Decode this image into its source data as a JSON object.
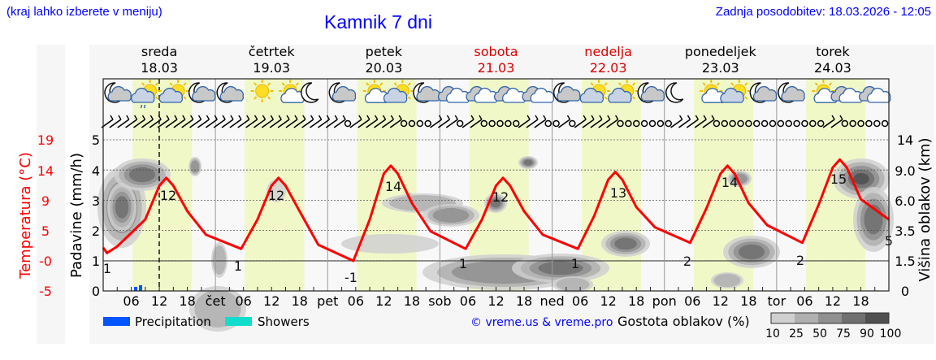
{
  "header": {
    "region_hint": "(kraj lahko izberete v meniju)",
    "title": "Kamnik 7 dni",
    "last_update": "Zadnja posodobitev: 18.03.2026 - 12:05"
  },
  "colors": {
    "temperature_line": "#ff0000",
    "daylight_band": "#f0f8c8",
    "precipitation": "#0055ff",
    "showers": "#11ddcc",
    "weekend": "#dd0000",
    "link": "#0000ff",
    "cloud_scale": [
      "#d0d0d0",
      "#b0b0b0",
      "#909090",
      "#707070",
      "#505050"
    ]
  },
  "days": [
    {
      "name": "sreda",
      "date": "18.03",
      "weekend": false,
      "abbr": ""
    },
    {
      "name": "četrtek",
      "date": "19.03",
      "weekend": false,
      "abbr": "čet"
    },
    {
      "name": "petek",
      "date": "20.03",
      "weekend": false,
      "abbr": "pet"
    },
    {
      "name": "sobota",
      "date": "21.03",
      "weekend": true,
      "abbr": "sob"
    },
    {
      "name": "nedelja",
      "date": "22.03",
      "weekend": true,
      "abbr": "ned"
    },
    {
      "name": "ponedeljek",
      "date": "23.03",
      "weekend": false,
      "abbr": "pon"
    },
    {
      "name": "torek",
      "date": "24.03",
      "weekend": false,
      "abbr": "tor"
    }
  ],
  "icons": [
    [
      "moon-cloud",
      "sun-cloud-rain",
      "sun-cloud",
      "moon-cloud"
    ],
    [
      "moon-cloud",
      "sun",
      "sun-small-cloud",
      "moon"
    ],
    [
      "moon-cloud",
      "sun-small-cloud",
      "sun-cloud",
      "moon-cloud"
    ],
    [
      "cloud",
      "cloud",
      "cloud",
      "cloud"
    ],
    [
      "moon-cloud",
      "sun-cloud",
      "sun-cloud",
      "moon-cloud"
    ],
    [
      "moon",
      "sun-small-cloud",
      "sun-cloud",
      "moon-cloud"
    ],
    [
      "moon-cloud",
      "sun-small-cloud",
      "cloud",
      "cloud"
    ]
  ],
  "axes": {
    "left_temp_label": "Temperatura (°C)",
    "left_temp_ticks": [
      "19",
      "14",
      "9",
      "5",
      "-0",
      "-5"
    ],
    "left_precip_label": "Padavine (mm/h)",
    "left_precip_ticks": [
      "5",
      "4",
      "3",
      "2",
      "1",
      "0"
    ],
    "right_label": "Višina oblakov (km)",
    "right_ticks": [
      "14",
      "9.0",
      "6.0",
      "3.5",
      "1.5",
      "0"
    ],
    "x_hour_ticks": [
      "06",
      "12",
      "18"
    ]
  },
  "legend": {
    "precipitation": "Precipitation",
    "showers": "Showers",
    "copyright": "© vreme.us & vreme.pro",
    "cloud_density_label": "Gostota oblakov (%)",
    "cloud_density_ticks": [
      "10",
      "25",
      "50",
      "75",
      "90",
      "100"
    ]
  },
  "chart_data": {
    "type": "line",
    "title": "Kamnik 7 dni",
    "xlabel": "",
    "ylabel": "Temperatura (°C)",
    "ylim": [
      -5,
      19
    ],
    "now_marker": "18.03 12:05",
    "series": [
      {
        "name": "Temperatura (°C)",
        "labels": [
          {
            "day": "18.03",
            "type": "min",
            "value": 1
          },
          {
            "day": "18.03",
            "type": "max",
            "value": 12
          },
          {
            "day": "19.03",
            "type": "min",
            "value": 1
          },
          {
            "day": "19.03",
            "type": "max",
            "value": 12
          },
          {
            "day": "20.03",
            "type": "min",
            "value": -1
          },
          {
            "day": "20.03",
            "type": "max",
            "value": 14
          },
          {
            "day": "21.03",
            "type": "min",
            "value": 1
          },
          {
            "day": "21.03",
            "type": "max",
            "value": 12
          },
          {
            "day": "22.03",
            "type": "min",
            "value": 1
          },
          {
            "day": "22.03",
            "type": "max",
            "value": 13
          },
          {
            "day": "23.03",
            "type": "min",
            "value": 2
          },
          {
            "day": "23.03",
            "type": "max",
            "value": 14
          },
          {
            "day": "24.03",
            "type": "min",
            "value": 2
          },
          {
            "day": "24.03",
            "type": "max",
            "value": 15
          },
          {
            "day": "24.03",
            "type": "end",
            "value": 5
          }
        ]
      },
      {
        "name": "Precipitation (mm/h)",
        "points": [
          {
            "time": "18.03 07:00",
            "value": 0.05
          },
          {
            "time": "18.03 08:00",
            "value": 0.1
          }
        ]
      }
    ],
    "secondary_axes": {
      "precipitation_mm_h": [
        0,
        5
      ],
      "cloud_height_km": [
        0,
        1.5,
        3.5,
        6.0,
        9.0,
        14
      ]
    },
    "legend_position": "bottom"
  }
}
